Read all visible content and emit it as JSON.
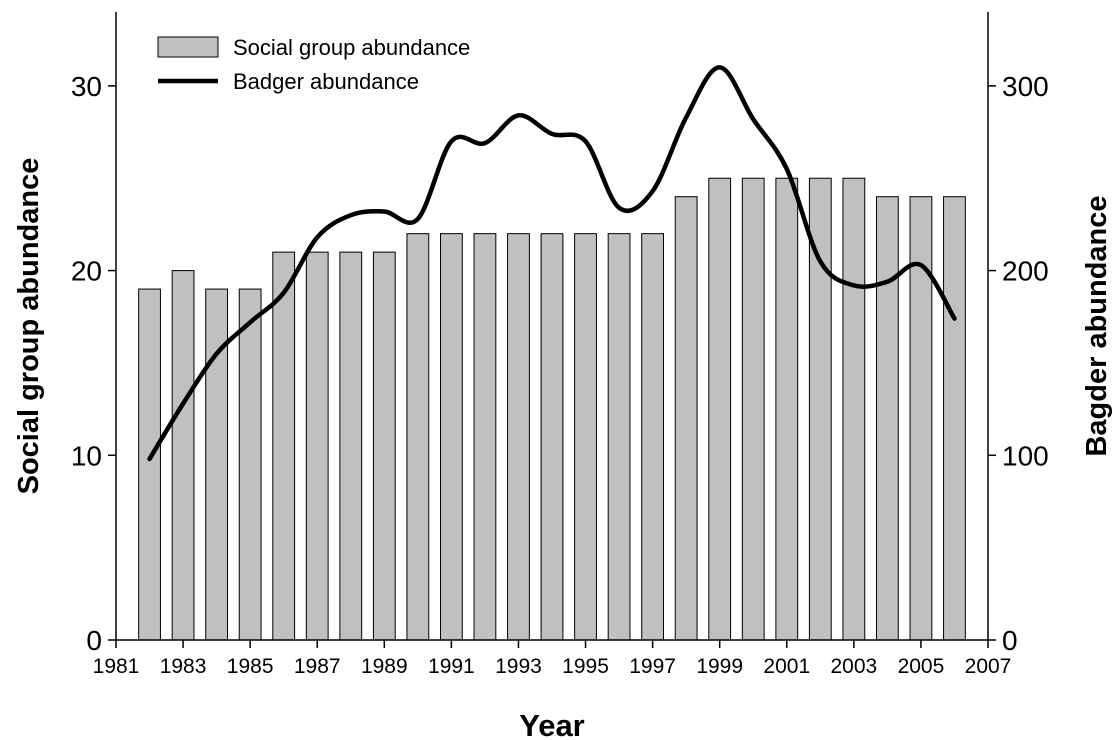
{
  "chart_data": {
    "type": "bar",
    "title": "",
    "xlabel": "Year",
    "ylabel": "Social group abundance",
    "y2label": "Bagder abundance",
    "xlim": [
      1981,
      2007
    ],
    "ylim": [
      0,
      34
    ],
    "y2lim": [
      0,
      340
    ],
    "x_ticks": [
      1981,
      1983,
      1985,
      1987,
      1989,
      1991,
      1993,
      1995,
      1997,
      1999,
      2001,
      2003,
      2005,
      2007
    ],
    "y_ticks": [
      0,
      10,
      20,
      30
    ],
    "y2_ticks": [
      0,
      100,
      200,
      300
    ],
    "grid": false,
    "legend_position": "top-left",
    "colors": {
      "bar_fill": "#c0c0c0",
      "bar_stroke": "#000000",
      "line": "#000000"
    },
    "series": [
      {
        "name": "Social group abundance",
        "kind": "bar",
        "axis": "left",
        "x": [
          1982,
          1983,
          1984,
          1985,
          1986,
          1987,
          1988,
          1989,
          1990,
          1991,
          1992,
          1993,
          1994,
          1995,
          1996,
          1997,
          1998,
          1999,
          2000,
          2001,
          2002,
          2003,
          2004,
          2005,
          2006
        ],
        "values": [
          19,
          20,
          19,
          19,
          21,
          21,
          21,
          21,
          22,
          22,
          22,
          22,
          22,
          22,
          22,
          22,
          24,
          25,
          25,
          25,
          25,
          25,
          24,
          24,
          24
        ]
      },
      {
        "name": "Badger abundance",
        "kind": "line",
        "axis": "right",
        "x": [
          1982,
          1983,
          1984,
          1985,
          1986,
          1987,
          1988,
          1989,
          1990,
          1991,
          1992,
          1993,
          1994,
          1995,
          1996,
          1997,
          1998,
          1999,
          2000,
          2001,
          2002,
          2003,
          2004,
          2005,
          2006
        ],
        "values": [
          98,
          128,
          155,
          172,
          188,
          218,
          230,
          232,
          228,
          270,
          269,
          284,
          274,
          270,
          234,
          243,
          283,
          310,
          282,
          255,
          205,
          192,
          194,
          203,
          174
        ]
      }
    ]
  }
}
